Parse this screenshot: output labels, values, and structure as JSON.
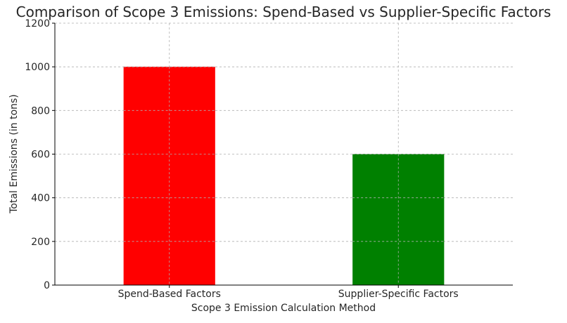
{
  "chart_data": {
    "type": "bar",
    "title": "Comparison of Scope 3 Emissions: Spend-Based vs Supplier-Specific Factors",
    "xlabel": "Scope 3 Emission Calculation Method",
    "ylabel": "Total Emissions (in tons)",
    "categories": [
      "Spend-Based Factors",
      "Supplier-Specific Factors"
    ],
    "values": [
      1000,
      600
    ],
    "colors": [
      "#ff0000",
      "#008000"
    ],
    "ylim": [
      0,
      1200
    ],
    "yticks": [
      0,
      200,
      400,
      600,
      800,
      1000,
      1200
    ],
    "grid": true
  }
}
